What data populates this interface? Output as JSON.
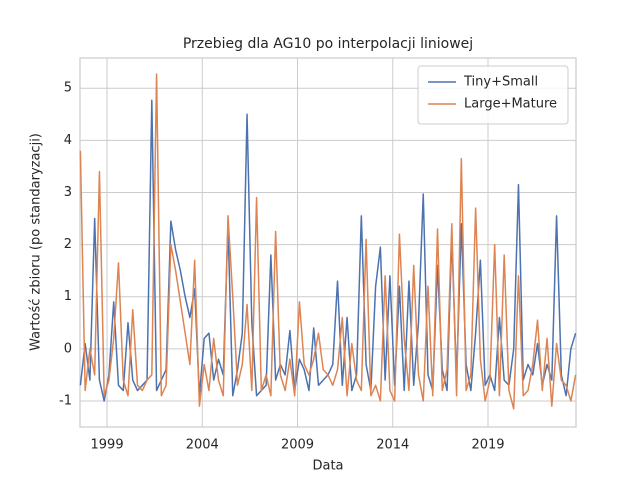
{
  "chart_data": {
    "type": "line",
    "title": "Przebieg dla AG10 po interpolacji liniowej",
    "xlabel": "Data",
    "ylabel": "Wartość zbioru (po standaryzacji)",
    "x": [
      1997.6,
      1997.85,
      1998.1,
      1998.35,
      1998.6,
      1998.85,
      1999.1,
      1999.35,
      1999.6,
      1999.85,
      2000.1,
      2000.35,
      2000.6,
      2000.85,
      2001.1,
      2001.35,
      2001.6,
      2001.85,
      2002.1,
      2002.35,
      2002.6,
      2002.85,
      2003.1,
      2003.35,
      2003.6,
      2003.85,
      2004.1,
      2004.35,
      2004.6,
      2004.85,
      2005.1,
      2005.35,
      2005.6,
      2005.85,
      2006.1,
      2006.35,
      2006.6,
      2006.85,
      2007.1,
      2007.35,
      2007.6,
      2007.85,
      2008.1,
      2008.35,
      2008.6,
      2008.85,
      2009.1,
      2009.35,
      2009.6,
      2009.85,
      2010.1,
      2010.35,
      2010.6,
      2010.85,
      2011.1,
      2011.35,
      2011.6,
      2011.85,
      2012.1,
      2012.35,
      2012.6,
      2012.85,
      2013.1,
      2013.35,
      2013.6,
      2013.85,
      2014.1,
      2014.35,
      2014.6,
      2014.85,
      2015.1,
      2015.35,
      2015.6,
      2015.85,
      2016.1,
      2016.35,
      2016.6,
      2016.85,
      2017.1,
      2017.35,
      2017.6,
      2017.85,
      2018.1,
      2018.35,
      2018.6,
      2018.85,
      2019.1,
      2019.35,
      2019.6,
      2019.85,
      2020.1,
      2020.35,
      2020.6,
      2020.85,
      2021.1,
      2021.35,
      2021.6,
      2021.85,
      2022.1,
      2022.35,
      2022.6,
      2022.85,
      2023.1,
      2023.35,
      2023.6
    ],
    "series": [
      {
        "name": "Tiny+Small",
        "color": "#4c72b0",
        "values": [
          -0.7,
          0.1,
          -0.6,
          2.5,
          -0.6,
          -1.0,
          -0.5,
          0.9,
          -0.7,
          -0.8,
          0.5,
          -0.6,
          -0.8,
          -0.7,
          -0.6,
          4.77,
          -0.8,
          -0.6,
          -0.4,
          2.45,
          1.9,
          1.5,
          1.0,
          0.6,
          1.15,
          -0.9,
          0.2,
          0.3,
          -0.6,
          -0.2,
          -0.5,
          2.37,
          -0.9,
          -0.4,
          0.3,
          4.5,
          0.5,
          -0.9,
          -0.8,
          -0.7,
          1.8,
          -0.6,
          -0.3,
          -0.5,
          0.35,
          -0.8,
          -0.2,
          -0.4,
          -0.8,
          0.4,
          -0.7,
          -0.6,
          -0.5,
          -0.3,
          1.3,
          -0.7,
          0.6,
          -0.8,
          -0.5,
          2.55,
          -0.3,
          -0.8,
          1.2,
          1.95,
          -0.6,
          1.4,
          -0.7,
          1.2,
          -0.8,
          1.3,
          -0.7,
          0.5,
          2.97,
          -0.5,
          -0.8,
          1.6,
          -0.4,
          -0.8,
          2.15,
          -0.6,
          2.4,
          -0.3,
          -0.8,
          0.3,
          1.7,
          -0.7,
          -0.5,
          -0.8,
          0.6,
          -0.6,
          -0.7,
          0.0,
          3.15,
          -0.6,
          -0.3,
          -0.5,
          0.1,
          -0.7,
          -0.3,
          -0.6,
          2.55,
          -0.5,
          -0.9,
          0.0,
          0.3
        ]
      },
      {
        "name": "Large+Mature",
        "color": "#dd8452",
        "values": [
          3.8,
          -0.8,
          0.0,
          -0.5,
          3.4,
          -0.9,
          -0.6,
          0.2,
          1.65,
          -0.6,
          -0.9,
          0.75,
          -0.7,
          -0.8,
          -0.6,
          -0.5,
          5.27,
          -0.9,
          -0.7,
          2.0,
          1.5,
          0.9,
          0.3,
          -0.3,
          1.7,
          -1.1,
          -0.3,
          -0.8,
          0.2,
          -0.6,
          -0.9,
          2.55,
          1.0,
          -0.7,
          -0.3,
          0.85,
          -0.8,
          2.9,
          -0.8,
          -0.5,
          -0.9,
          2.25,
          -0.5,
          -0.8,
          -0.2,
          -0.9,
          0.9,
          -0.3,
          -0.5,
          -0.2,
          0.3,
          -0.4,
          -0.5,
          -0.7,
          -0.4,
          0.6,
          -0.9,
          0.1,
          -0.6,
          -0.8,
          2.1,
          -0.9,
          -0.7,
          -1.0,
          1.4,
          -0.8,
          -1.0,
          2.2,
          0.2,
          -0.8,
          1.6,
          -0.5,
          -1.0,
          1.2,
          -0.9,
          2.3,
          -0.8,
          -0.4,
          2.4,
          -0.9,
          3.65,
          -0.8,
          -0.5,
          2.7,
          -0.2,
          -1.0,
          -0.6,
          2.0,
          -0.9,
          1.8,
          -0.8,
          -1.15,
          1.4,
          -0.9,
          -0.8,
          -0.3,
          0.55,
          -0.8,
          0.2,
          -1.1,
          0.1,
          -0.6,
          -0.7,
          -1.0,
          -0.5
        ]
      }
    ],
    "xlim": [
      1997.58,
      2023.62
    ],
    "xticks": [
      1999,
      2004,
      2009,
      2014,
      2019
    ],
    "ylim": [
      -1.5,
      5.58
    ],
    "yticks": [
      -1,
      0,
      1,
      2,
      3,
      4,
      5
    ],
    "grid": true,
    "legend": "upper right"
  }
}
